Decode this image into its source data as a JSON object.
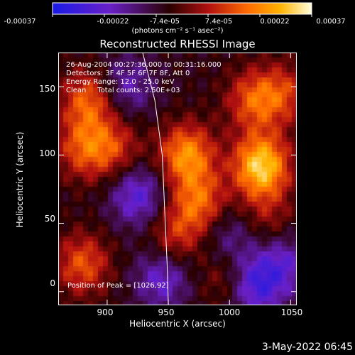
{
  "colorbar": {
    "ticks": [
      "-0.00037",
      "-0.00022",
      "-7.4e-05",
      "7.4e-05",
      "0.00022",
      "0.00037"
    ],
    "unit_label": "(photons cm⁻² s⁻¹ asec⁻²)",
    "colors": [
      "#1a1ae6",
      "#6a20c8",
      "#2a0000",
      "#b01010",
      "#ff6a00",
      "#ffb400",
      "#ffffe0"
    ]
  },
  "title": "Reconstructed RHESSI Image",
  "annotations": {
    "time": "26-Aug-2004 00:27:36.000 to 00:31:16.000",
    "detectors": "Detectors: 3F 4F 5F 6F 7F 8F, Att 0",
    "energy": "Energy Range: 12.0 - 25.0 keV",
    "clean": "Clean     Total counts: 2.50E+03",
    "peak": "Position of Peak = [1026,92]"
  },
  "footer_date": "3-May-2022 06:45",
  "chart_data": {
    "type": "heatmap",
    "title": "Reconstructed RHESSI Image",
    "xlabel": "Heliocentric X (arcsec)",
    "ylabel": "Heliocentric Y (arcsec)",
    "xlim": [
      860,
      1055
    ],
    "ylim": [
      -10,
      175
    ],
    "x_ticks": [
      900,
      950,
      1000,
      1050
    ],
    "y_ticks": [
      0,
      50,
      100,
      150
    ],
    "x_tick_labels": [
      "900",
      "950",
      "1000",
      "1050"
    ],
    "y_tick_labels": [
      "0",
      "50",
      "100",
      "150"
    ],
    "colorbar_range": [
      -0.00037,
      0.00037
    ],
    "peak_position": [
      1026,
      92
    ],
    "limb_curve": {
      "x": [
        929,
        939,
        945,
        947,
        949,
        950
      ],
      "y": [
        175,
        140,
        100,
        60,
        20,
        -10
      ]
    },
    "sources": [
      {
        "x": 1026,
        "y": 92,
        "value": 0.00037
      },
      {
        "x": 1020,
        "y": 140,
        "value": 0.0002
      },
      {
        "x": 965,
        "y": 100,
        "value": 0.00028
      },
      {
        "x": 975,
        "y": 65,
        "value": 0.00022
      },
      {
        "x": 955,
        "y": 40,
        "value": 0.00015
      },
      {
        "x": 885,
        "y": 140,
        "value": 0.00022
      },
      {
        "x": 880,
        "y": 105,
        "value": 0.00018
      },
      {
        "x": 905,
        "y": 105,
        "value": 0.00016
      },
      {
        "x": 880,
        "y": 20,
        "value": 0.0002
      },
      {
        "x": 1000,
        "y": 10,
        "value": 0.00013
      },
      {
        "x": 1030,
        "y": 55,
        "value": 0.0001
      },
      {
        "x": 1045,
        "y": 145,
        "value": 0.00015
      },
      {
        "x": 925,
        "y": 70,
        "value": -0.0002
      },
      {
        "x": 915,
        "y": 150,
        "value": -0.00015
      },
      {
        "x": 1020,
        "y": 5,
        "value": -0.00025
      },
      {
        "x": 945,
        "y": 10,
        "value": -0.00018
      },
      {
        "x": 1000,
        "y": 40,
        "value": -0.00012
      },
      {
        "x": 1045,
        "y": 20,
        "value": -0.00015
      }
    ]
  }
}
